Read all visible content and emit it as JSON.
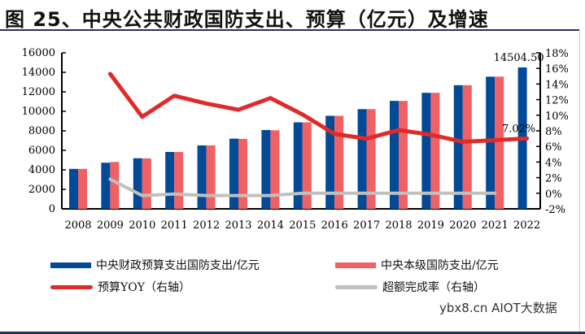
{
  "title": "图 25、中央公共财政国防支出、预算（亿元）及增速",
  "watermark": "ybx8.cn AIOT大数据",
  "chart_data": {
    "type": "bar",
    "categories": [
      "2008",
      "2009",
      "2010",
      "2011",
      "2012",
      "2013",
      "2014",
      "2015",
      "2016",
      "2017",
      "2018",
      "2019",
      "2020",
      "2021",
      "2022"
    ],
    "series": [
      {
        "name": "中央财政预算支出国防支出/亿元",
        "type": "bar",
        "axis": "left",
        "color": "#004a98",
        "values": [
          4099,
          4729,
          5191,
          5836,
          6503,
          7202,
          8082,
          8869,
          9544,
          10226,
          11070,
          11899,
          12680,
          13553,
          14504.5
        ]
      },
      {
        "name": "中央本级国防支出/亿元",
        "type": "bar",
        "axis": "left",
        "color": "#f06064",
        "values": [
          4099,
          4807,
          5176,
          5829,
          6506,
          7177,
          8055,
          8868,
          9544,
          10226,
          11070,
          11899,
          12680,
          13553,
          null
        ]
      },
      {
        "name": "预算YOY（右轴）",
        "type": "line",
        "axis": "right",
        "color": "#e02a2a",
        "values": [
          null,
          15.3,
          9.8,
          12.5,
          11.5,
          10.7,
          12.2,
          10.1,
          7.6,
          7.0,
          8.1,
          7.5,
          6.6,
          6.8,
          7.02
        ]
      },
      {
        "name": "超额完成率（右轴）",
        "type": "line",
        "axis": "right",
        "color": "#c0c0c0",
        "values": [
          null,
          1.8,
          -0.3,
          -0.1,
          -0.3,
          -0.3,
          -0.3,
          0.0,
          0.0,
          0.0,
          0.0,
          0.0,
          0.0,
          0.0,
          null
        ]
      }
    ],
    "ylim_left": [
      0,
      16000
    ],
    "yticks_left": [
      "0",
      "2000",
      "4000",
      "6000",
      "8000",
      "10000",
      "12000",
      "14000",
      "16000"
    ],
    "ylim_right": [
      -2,
      18
    ],
    "yticks_right": [
      "-2%",
      "0%",
      "2%",
      "4%",
      "6%",
      "8%",
      "10%",
      "12%",
      "14%",
      "16%",
      "18%"
    ],
    "annotations": [
      "14504.50",
      "7.02%"
    ],
    "grid": false,
    "legend": "bottom"
  }
}
